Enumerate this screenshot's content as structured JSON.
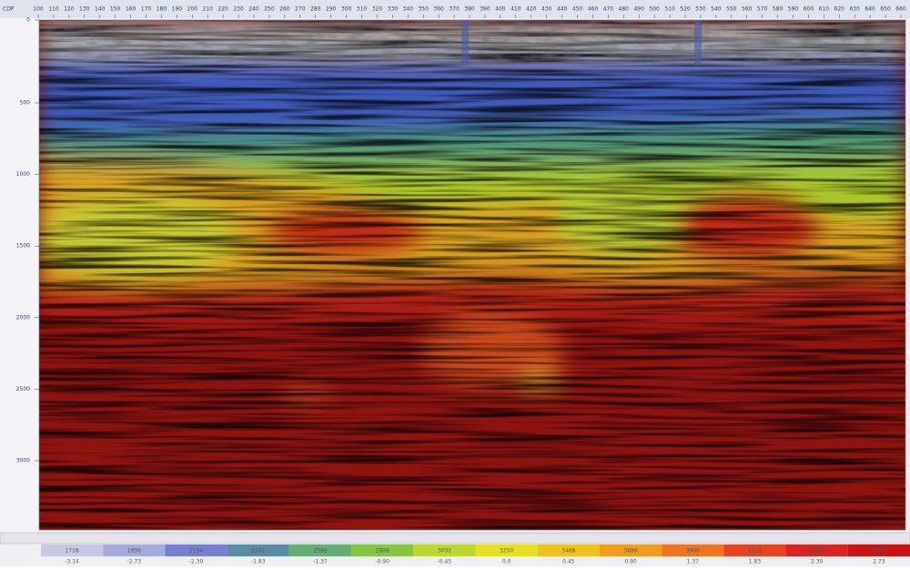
{
  "top_axis": {
    "label": "CDP",
    "ticks": [
      "100",
      "110",
      "120",
      "130",
      "140",
      "150",
      "160",
      "170",
      "180",
      "190",
      "200",
      "210",
      "220",
      "230",
      "240",
      "250",
      "260",
      "270",
      "280",
      "290",
      "300",
      "310",
      "320",
      "330",
      "340",
      "350",
      "360",
      "370",
      "380",
      "390",
      "400",
      "410",
      "420",
      "430",
      "440",
      "450",
      "460",
      "470",
      "480",
      "490",
      "500",
      "510",
      "520",
      "530",
      "540",
      "550",
      "560",
      "570",
      "580",
      "590",
      "600",
      "610",
      "620",
      "630",
      "640",
      "650",
      "660"
    ]
  },
  "time_axis": {
    "ticks": [
      "0",
      "500",
      "1000",
      "1500",
      "2000",
      "2500",
      "3000"
    ]
  },
  "colorbar": {
    "velocity": [
      "1718",
      "1936",
      "2154",
      "2372",
      "2590",
      "2808",
      "3032",
      "3250",
      "3468",
      "3686",
      "3906",
      "4124",
      "4342",
      "4560"
    ],
    "amplitude": [
      "-3.14",
      "-2.73",
      "-2.30",
      "-1.83",
      "-1.37",
      "-0.90",
      "-0.45",
      "0.0",
      "0.45",
      "0.90",
      "1.37",
      "1.83",
      "2.30",
      "2.73"
    ]
  }
}
